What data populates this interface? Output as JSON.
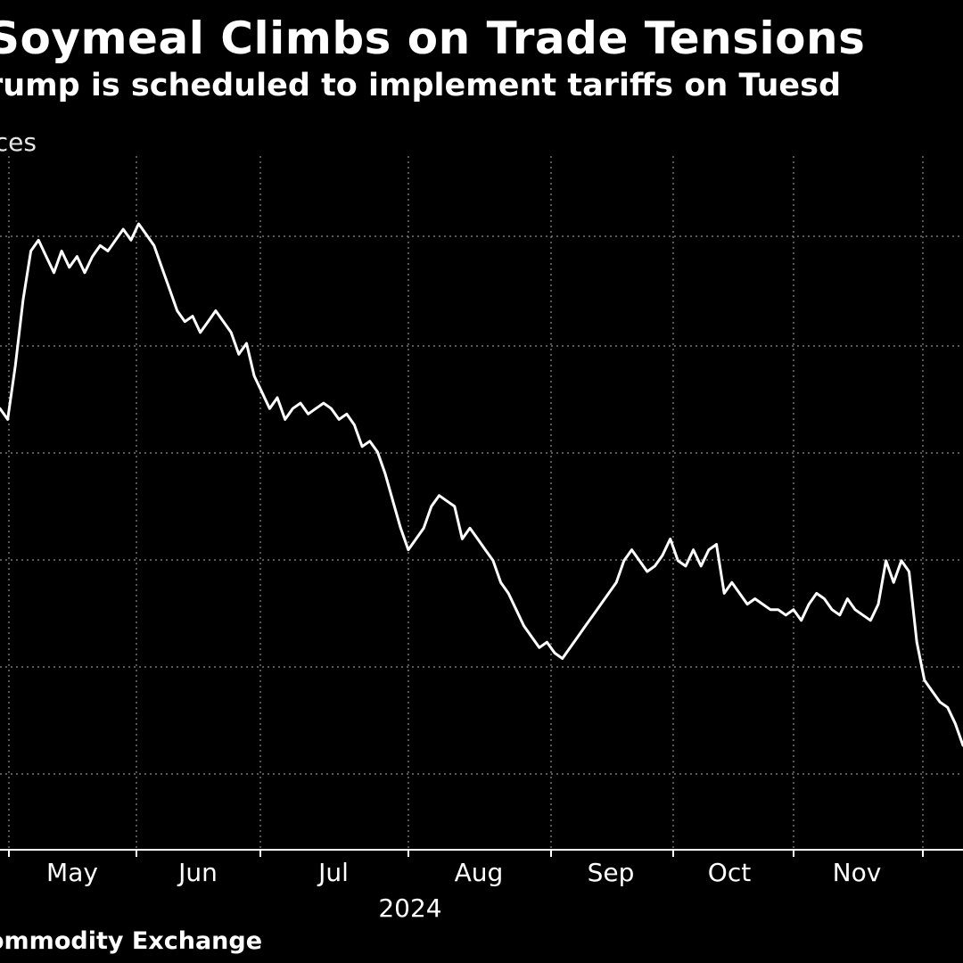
{
  "header": {
    "title": "Soymeal Climbs on Trade Tensions",
    "subtitle": "rump is scheduled to implement tariffs on Tuesd",
    "ylabel": "ices"
  },
  "footer": {
    "source": "ommodity Exchange"
  },
  "colors": {
    "background": "#000000",
    "line": "#ffffff",
    "grid": "#8c8c8c",
    "axis": "#ffffff"
  },
  "chart_data": {
    "type": "line",
    "title": "Soymeal Climbs on Trade Tensions",
    "subtitle": "rump is scheduled to implement tariffs on Tuesd",
    "ylabel": "ices",
    "xlabel": "2024",
    "x_ticks": [
      "May",
      "Jun",
      "Jul",
      "Aug",
      "Sep",
      "Oct",
      "Nov"
    ],
    "x_year_label": "2024",
    "grid": true,
    "x_range_days": [
      0,
      250
    ],
    "y_range": [
      0,
      120
    ],
    "note": "",
    "series": [
      {
        "name": "",
        "x": [
          0,
          2,
          4,
          6,
          8,
          10,
          12,
          14,
          16,
          18,
          20,
          22,
          24,
          26,
          28,
          30,
          32,
          34,
          36,
          38,
          40,
          42,
          44,
          46,
          48,
          50,
          52,
          54,
          56,
          58,
          60,
          62,
          64,
          66,
          68,
          70,
          72,
          74,
          76,
          78,
          80,
          82,
          84,
          86,
          88,
          90,
          92,
          94,
          96,
          98,
          100,
          102,
          104,
          106,
          108,
          110,
          112,
          114,
          116,
          118,
          120,
          122,
          124,
          126,
          128,
          130,
          132,
          134,
          136,
          138,
          140,
          142,
          144,
          146,
          148,
          150,
          152,
          154,
          156,
          158,
          160,
          162,
          164,
          166,
          168,
          170,
          172,
          174,
          176,
          178,
          180,
          182,
          184,
          186,
          188,
          190,
          192,
          194,
          196,
          198,
          200,
          202,
          204,
          206,
          208,
          210,
          212,
          214,
          216,
          218,
          220,
          222,
          224,
          226,
          228,
          230,
          232,
          234,
          236,
          238,
          240,
          242,
          244,
          246,
          248,
          250
        ],
        "y": [
          62,
          60,
          70,
          82,
          91,
          93,
          90,
          87,
          91,
          88,
          90,
          87,
          90,
          92,
          91,
          93,
          95,
          93,
          96,
          94,
          92,
          88,
          84,
          80,
          78,
          79,
          76,
          78,
          80,
          78,
          76,
          72,
          74,
          68,
          65,
          62,
          64,
          60,
          62,
          63,
          61,
          62,
          63,
          62,
          60,
          61,
          59,
          55,
          56,
          54,
          50,
          45,
          40,
          36,
          38,
          40,
          44,
          46,
          45,
          44,
          38,
          40,
          38,
          36,
          34,
          30,
          28,
          25,
          22,
          20,
          18,
          19,
          17,
          16,
          18,
          20,
          22,
          24,
          26,
          28,
          30,
          34,
          36,
          34,
          32,
          33,
          35,
          38,
          34,
          33,
          36,
          33,
          36,
          37,
          28,
          30,
          28,
          26,
          27,
          26,
          25,
          25,
          24,
          25,
          23,
          26,
          28,
          27,
          25,
          24,
          27,
          25,
          24,
          23,
          26,
          34,
          30,
          34,
          32,
          19,
          12,
          10,
          8,
          7,
          4,
          0
        ]
      }
    ]
  }
}
